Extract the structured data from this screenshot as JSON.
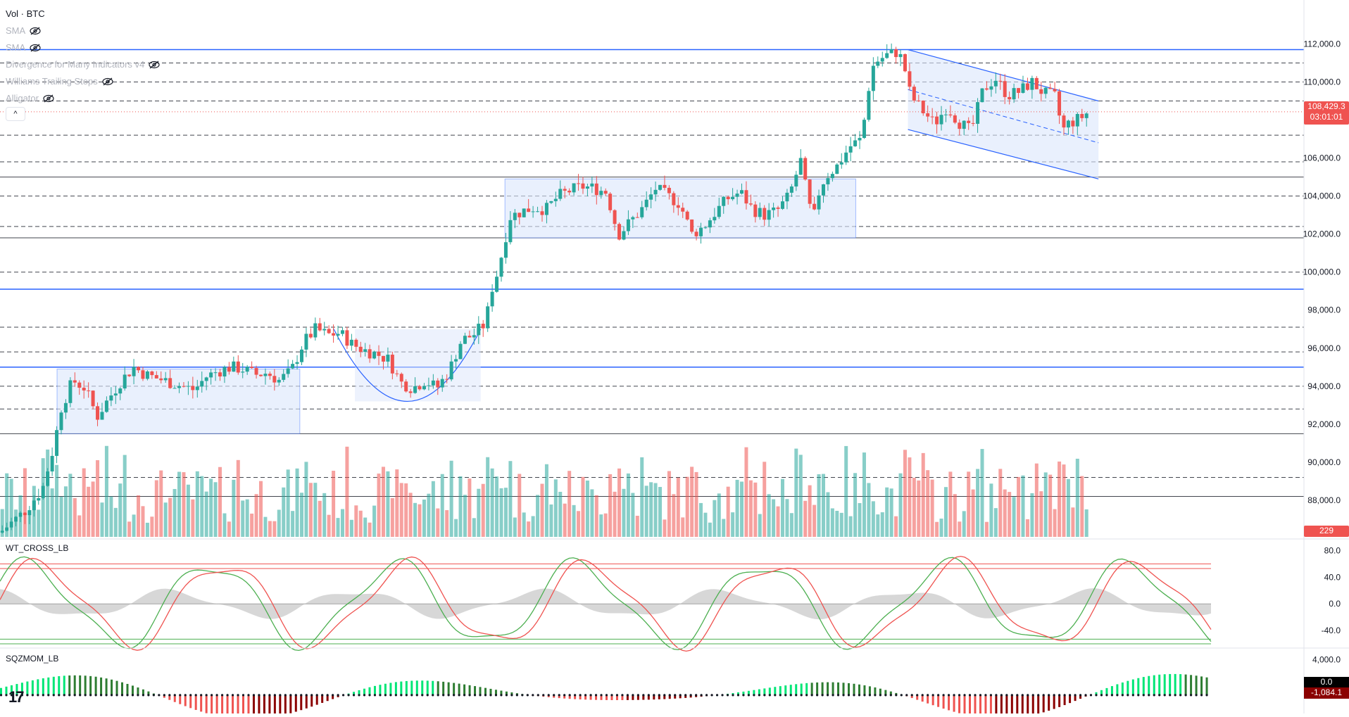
{
  "legend": {
    "title": "Vol · BTC",
    "items": [
      "SMA",
      "SMA",
      "Divergence for Many Indicators v4",
      "Williams Trailing Stops",
      "Alligator"
    ]
  },
  "collapse_label": "^",
  "panes": {
    "osc1_label": "WT_CROSS_LB",
    "osc2_label": "SQZMOM_LB"
  },
  "price_axis": {
    "labels": [
      "112,000.0",
      "110,000.0",
      "106,000.0",
      "104,000.0",
      "102,000.0",
      "100,000.0",
      "98,000.0",
      "96,000.0",
      "94,000.0",
      "92,000.0",
      "90,000.0",
      "88,000.0"
    ],
    "current_price": "108,429.3",
    "countdown": "03:01:01",
    "volume_value": "229"
  },
  "osc1_axis": {
    "labels": [
      "80.0",
      "40.0",
      "0.0",
      "-40.0"
    ]
  },
  "osc2_axis": {
    "labels": [
      "4,000.0"
    ],
    "value_top": "0.0",
    "value_bottom": "-1,084.1"
  },
  "logo_text": "17",
  "colors": {
    "up": "#26a69a",
    "down": "#ef5350",
    "blue": "#2962ff",
    "box": "#dbe6fb",
    "price_tag": "#ef5350"
  },
  "chart_data": {
    "type": "candlestick",
    "title": "Vol · BTC",
    "ylim": [
      86000,
      113200
    ],
    "horizontal_levels": [
      111700,
      111000,
      110000,
      109000,
      107200,
      105800,
      105000,
      104000,
      102400,
      101800,
      100000,
      99100,
      97100,
      95800,
      95000,
      94000,
      92800,
      91500,
      89200,
      88200
    ],
    "key_levels_blue": [
      111700,
      99100,
      95000
    ],
    "ranges": [
      {
        "x_start": 0.047,
        "x_end": 0.247,
        "y_low": 91500,
        "y_high": 94900
      },
      {
        "x_start": 0.416,
        "x_end": 0.705,
        "y_low": 101800,
        "y_high": 104900
      }
    ],
    "channel": {
      "x_start": 0.748,
      "x_end": 0.905,
      "top": [
        111700,
        109000
      ],
      "bottom": [
        107500,
        104900
      ],
      "mid": [
        109600,
        106800
      ]
    },
    "cup": {
      "x_start": 0.275,
      "x_end": 0.396,
      "rim": 97000,
      "bottom": 93200
    },
    "close_path": [
      [
        0.0,
        86300
      ],
      [
        0.02,
        87400
      ],
      [
        0.035,
        88600
      ],
      [
        0.045,
        91000
      ],
      [
        0.05,
        92800
      ],
      [
        0.06,
        94300
      ],
      [
        0.07,
        93900
      ],
      [
        0.08,
        92400
      ],
      [
        0.09,
        93400
      ],
      [
        0.1,
        94300
      ],
      [
        0.11,
        95000
      ],
      [
        0.12,
        94600
      ],
      [
        0.13,
        94400
      ],
      [
        0.14,
        94200
      ],
      [
        0.15,
        94000
      ],
      [
        0.16,
        93800
      ],
      [
        0.17,
        94500
      ],
      [
        0.18,
        94800
      ],
      [
        0.19,
        95000
      ],
      [
        0.2,
        94900
      ],
      [
        0.21,
        94600
      ],
      [
        0.22,
        94700
      ],
      [
        0.23,
        94300
      ],
      [
        0.24,
        94800
      ],
      [
        0.25,
        96300
      ],
      [
        0.26,
        97000
      ],
      [
        0.27,
        96700
      ],
      [
        0.28,
        96800
      ],
      [
        0.29,
        96200
      ],
      [
        0.3,
        95900
      ],
      [
        0.31,
        95700
      ],
      [
        0.32,
        95400
      ],
      [
        0.33,
        94200
      ],
      [
        0.34,
        93900
      ],
      [
        0.35,
        94300
      ],
      [
        0.36,
        93900
      ],
      [
        0.37,
        94800
      ],
      [
        0.38,
        96400
      ],
      [
        0.39,
        96700
      ],
      [
        0.4,
        97300
      ],
      [
        0.405,
        99100
      ],
      [
        0.41,
        100000
      ],
      [
        0.415,
        101400
      ],
      [
        0.42,
        102900
      ],
      [
        0.43,
        103200
      ],
      [
        0.44,
        103400
      ],
      [
        0.45,
        103300
      ],
      [
        0.46,
        104000
      ],
      [
        0.47,
        104300
      ],
      [
        0.48,
        104500
      ],
      [
        0.49,
        104400
      ],
      [
        0.5,
        104200
      ],
      [
        0.505,
        102900
      ],
      [
        0.51,
        102000
      ],
      [
        0.52,
        102700
      ],
      [
        0.53,
        103400
      ],
      [
        0.54,
        104400
      ],
      [
        0.55,
        104000
      ],
      [
        0.56,
        103600
      ],
      [
        0.57,
        102000
      ],
      [
        0.58,
        102400
      ],
      [
        0.59,
        103200
      ],
      [
        0.6,
        103900
      ],
      [
        0.61,
        104200
      ],
      [
        0.62,
        103300
      ],
      [
        0.63,
        103000
      ],
      [
        0.64,
        103200
      ],
      [
        0.65,
        104000
      ],
      [
        0.66,
        105900
      ],
      [
        0.665,
        103900
      ],
      [
        0.67,
        102700
      ],
      [
        0.675,
        104300
      ],
      [
        0.68,
        105000
      ],
      [
        0.69,
        105600
      ],
      [
        0.7,
        106600
      ],
      [
        0.71,
        107000
      ],
      [
        0.715,
        109500
      ],
      [
        0.72,
        111000
      ],
      [
        0.73,
        111400
      ],
      [
        0.74,
        111600
      ],
      [
        0.745,
        110800
      ],
      [
        0.75,
        109300
      ],
      [
        0.76,
        108500
      ],
      [
        0.77,
        107800
      ],
      [
        0.78,
        108700
      ],
      [
        0.79,
        107900
      ],
      [
        0.8,
        107400
      ],
      [
        0.81,
        109600
      ],
      [
        0.82,
        110200
      ],
      [
        0.83,
        109300
      ],
      [
        0.84,
        109500
      ],
      [
        0.85,
        110000
      ],
      [
        0.86,
        109400
      ],
      [
        0.87,
        109200
      ],
      [
        0.875,
        107400
      ],
      [
        0.88,
        107800
      ],
      [
        0.89,
        108100
      ],
      [
        0.897,
        108429
      ]
    ],
    "osc1": {
      "ylim": [
        -60,
        90
      ],
      "levels": [
        80,
        40,
        0,
        -40
      ],
      "overbought": [
        60,
        53
      ],
      "oversold": [
        -53,
        -60
      ]
    },
    "osc2": {
      "ylim": [
        -1600,
        4600
      ],
      "levels": [
        4000,
        0
      ]
    },
    "current_price": 108429.3
  }
}
